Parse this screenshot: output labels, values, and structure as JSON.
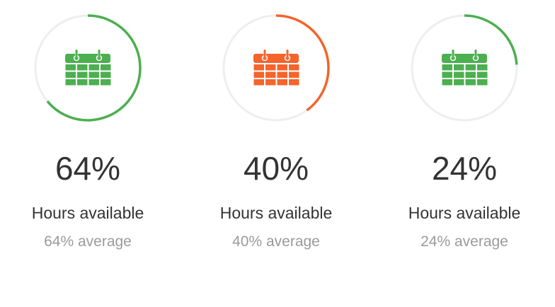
{
  "stats": [
    {
      "percent": 64,
      "value": "64%",
      "label": "Hours available",
      "subtext": "64% average",
      "color": "#4caf50",
      "icon": "calendar-icon"
    },
    {
      "percent": 40,
      "value": "40%",
      "label": "Hours available",
      "subtext": "40% average",
      "color": "#f4642c",
      "icon": "calendar-icon"
    },
    {
      "percent": 24,
      "value": "24%",
      "label": "Hours available",
      "subtext": "24% average",
      "color": "#4caf50",
      "icon": "calendar-icon"
    }
  ],
  "track_color": "#eeeeee"
}
